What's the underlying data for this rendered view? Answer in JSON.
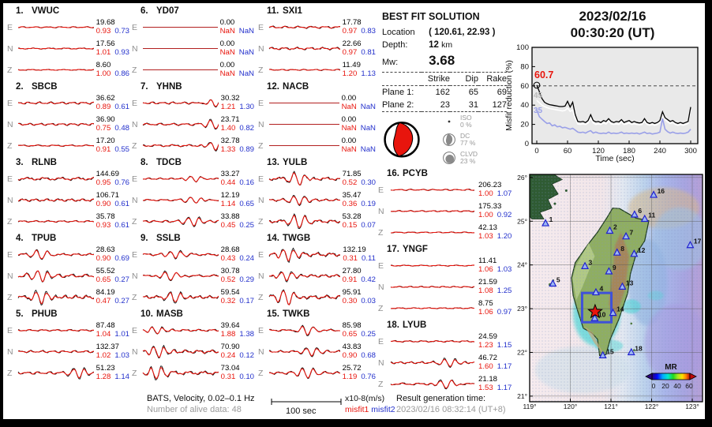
{
  "event_time": {
    "date": "2023/02/16",
    "time": "00:30:20  (UT)"
  },
  "solution": {
    "title": "BEST FIT SOLUTION",
    "location_label": "Location",
    "location_value": "( 120.61, 22.93 )",
    "depth_label": "Depth:",
    "depth_value": "12",
    "depth_unit": "km",
    "mw_label": "Mw:",
    "mw_value": "3.68",
    "table_headers": [
      "Strike",
      "Dip",
      "Rake"
    ],
    "plane1": {
      "label": "Plane 1:",
      "strike": "162",
      "dip": "65",
      "rake": "69"
    },
    "plane2": {
      "label": "Plane 2:",
      "strike": "23",
      "dip": "31",
      "rake": "127"
    },
    "iso": {
      "name": "ISO",
      "pct": "0 %"
    },
    "dc": {
      "name": "DC",
      "pct": "77 %"
    },
    "clvd": {
      "name": "CLVD",
      "pct": "23 %"
    }
  },
  "stations": [
    {
      "id": "1.",
      "name": "VWUC",
      "traces": [
        {
          "comp": "E",
          "amp": "19.68",
          "m1": "0.93",
          "m2": "0.73",
          "w": 1.0
        },
        {
          "comp": "N",
          "amp": "17.56",
          "m1": "1.01",
          "m2": "0.93",
          "w": 1.0
        },
        {
          "comp": "Z",
          "amp": "8.60",
          "m1": "1.00",
          "m2": "0.86",
          "w": 0.8
        }
      ]
    },
    {
      "id": "2.",
      "name": "SBCB",
      "traces": [
        {
          "comp": "E",
          "amp": "36.62",
          "m1": "0.89",
          "m2": "0.61",
          "w": 1.8
        },
        {
          "comp": "N",
          "amp": "36.90",
          "m1": "0.75",
          "m2": "0.48",
          "w": 1.8
        },
        {
          "comp": "Z",
          "amp": "17.20",
          "m1": "0.91",
          "m2": "0.55",
          "w": 1.2
        }
      ]
    },
    {
      "id": "3.",
      "name": "RLNB",
      "traces": [
        {
          "comp": "E",
          "amp": "144.69",
          "m1": "0.95",
          "m2": "0.76",
          "w": 2.4
        },
        {
          "comp": "N",
          "amp": "106.71",
          "m1": "0.90",
          "m2": "0.61",
          "w": 2.2
        },
        {
          "comp": "Z",
          "amp": "35.78",
          "m1": "0.93",
          "m2": "0.61",
          "w": 1.4
        }
      ]
    },
    {
      "id": "4.",
      "name": "TPUB",
      "traces": [
        {
          "comp": "E",
          "amp": "28.63",
          "m1": "0.90",
          "m2": "0.69",
          "w": 1.8,
          "p": 0.27
        },
        {
          "comp": "N",
          "amp": "55.52",
          "m1": "0.65",
          "m2": "0.27",
          "w": 2.8,
          "p": 0.28
        },
        {
          "comp": "Z",
          "amp": "84.19",
          "m1": "0.47",
          "m2": "0.27",
          "w": 3.2,
          "p": 0.27
        }
      ]
    },
    {
      "id": "5.",
      "name": "PHUB",
      "traces": [
        {
          "comp": "E",
          "amp": "87.48",
          "m1": "1.04",
          "m2": "1.01",
          "w": 1.4
        },
        {
          "comp": "N",
          "amp": "132.37",
          "m1": "1.02",
          "m2": "1.03",
          "w": 1.8
        },
        {
          "comp": "Z",
          "amp": "51.23",
          "m1": "1.28",
          "m2": "1.14",
          "w": 2.2,
          "p": 0.72
        }
      ]
    },
    {
      "id": "6.",
      "name": "YD07",
      "traces": [
        {
          "comp": "E",
          "amp": "0.00",
          "m1": "NaN",
          "m2": "NaN",
          "w": 0
        },
        {
          "comp": "N",
          "amp": "0.00",
          "m1": "NaN",
          "m2": "NaN",
          "w": 0
        },
        {
          "comp": "Z",
          "amp": "0.00",
          "m1": "NaN",
          "m2": "NaN",
          "w": 0
        }
      ]
    },
    {
      "id": "7.",
      "name": "YHNB",
      "traces": [
        {
          "comp": "E",
          "amp": "30.32",
          "m1": "1.21",
          "m2": "1.30",
          "w": 1.8,
          "p": 0.86
        },
        {
          "comp": "N",
          "amp": "23.71",
          "m1": "1.40",
          "m2": "0.82",
          "w": 1.8,
          "p": 0.86
        },
        {
          "comp": "Z",
          "amp": "32.78",
          "m1": "1.33",
          "m2": "0.89",
          "w": 1.8,
          "p": 0.86
        }
      ]
    },
    {
      "id": "8.",
      "name": "TDCB",
      "traces": [
        {
          "comp": "E",
          "amp": "33.27",
          "m1": "0.44",
          "m2": "0.16",
          "w": 1.4,
          "p": 0.62
        },
        {
          "comp": "N",
          "amp": "12.19",
          "m1": "1.14",
          "m2": "0.65",
          "w": 1.4,
          "p": 0.62
        },
        {
          "comp": "Z",
          "amp": "33.88",
          "m1": "0.45",
          "m2": "0.25",
          "w": 1.8,
          "p": 0.6
        }
      ]
    },
    {
      "id": "9.",
      "name": "SSLB",
      "traces": [
        {
          "comp": "E",
          "amp": "28.68",
          "m1": "0.43",
          "m2": "0.24",
          "w": 1.8,
          "p": 0.38
        },
        {
          "comp": "N",
          "amp": "30.78",
          "m1": "0.52",
          "m2": "0.29",
          "w": 1.8,
          "p": 0.32
        },
        {
          "comp": "Z",
          "amp": "59.54",
          "m1": "0.32",
          "m2": "0.17",
          "w": 2.6,
          "p": 0.38
        }
      ]
    },
    {
      "id": "10.",
      "name": "MASB",
      "traces": [
        {
          "comp": "E",
          "amp": "39.64",
          "m1": "1.88",
          "m2": "1.38",
          "w": 1.8,
          "p": 0.16
        },
        {
          "comp": "N",
          "amp": "70.90",
          "m1": "0.24",
          "m2": "0.12",
          "w": 3.0,
          "p": 0.18
        },
        {
          "comp": "Z",
          "amp": "73.04",
          "m1": "0.31",
          "m2": "0.10",
          "w": 3.0,
          "p": 0.15
        }
      ]
    },
    {
      "id": "11.",
      "name": "SXI1",
      "traces": [
        {
          "comp": "E",
          "amp": "17.78",
          "m1": "0.97",
          "m2": "0.83",
          "w": 1.8
        },
        {
          "comp": "N",
          "amp": "22.66",
          "m1": "0.97",
          "m2": "0.81",
          "w": 2.0
        },
        {
          "comp": "Z",
          "amp": "11.49",
          "m1": "1.20",
          "m2": "1.13",
          "w": 1.0
        }
      ]
    },
    {
      "id": "12.",
      "name": "NACB",
      "traces": [
        {
          "comp": "E",
          "amp": "0.00",
          "m1": "NaN",
          "m2": "NaN",
          "w": 0
        },
        {
          "comp": "N",
          "amp": "0.00",
          "m1": "NaN",
          "m2": "NaN",
          "w": 0
        },
        {
          "comp": "Z",
          "amp": "0.00",
          "m1": "NaN",
          "m2": "NaN",
          "w": 0
        }
      ]
    },
    {
      "id": "13.",
      "name": "YULB",
      "traces": [
        {
          "comp": "E",
          "amp": "71.85",
          "m1": "0.52",
          "m2": "0.30",
          "w": 2.6,
          "p": 0.35
        },
        {
          "comp": "N",
          "amp": "35.47",
          "m1": "0.36",
          "m2": "0.19",
          "w": 1.8,
          "p": 0.35
        },
        {
          "comp": "Z",
          "amp": "53.28",
          "m1": "0.15",
          "m2": "0.07",
          "w": 2.6,
          "p": 0.35
        }
      ]
    },
    {
      "id": "14.",
      "name": "TWGB",
      "traces": [
        {
          "comp": "E",
          "amp": "132.19",
          "m1": "0.31",
          "m2": "0.11",
          "w": 3.2,
          "p": 0.22
        },
        {
          "comp": "N",
          "amp": "27.80",
          "m1": "0.91",
          "m2": "0.42",
          "w": 2.4,
          "p": 0.2
        },
        {
          "comp": "Z",
          "amp": "95.91",
          "m1": "0.30",
          "m2": "0.03",
          "w": 3.2,
          "p": 0.22
        }
      ]
    },
    {
      "id": "15.",
      "name": "TWKB",
      "traces": [
        {
          "comp": "E",
          "amp": "85.98",
          "m1": "0.65",
          "m2": "0.25",
          "w": 1.8,
          "p": 0.45
        },
        {
          "comp": "N",
          "amp": "43.83",
          "m1": "0.90",
          "m2": "0.68",
          "w": 1.8,
          "p": 0.5
        },
        {
          "comp": "Z",
          "amp": "25.72",
          "m1": "1.19",
          "m2": "0.76",
          "w": 2.0,
          "p": 0.45
        }
      ]
    },
    {
      "id": "16.",
      "name": "PCYB",
      "traces": [
        {
          "comp": "E",
          "amp": "206.23",
          "m1": "1.00",
          "m2": "1.07",
          "w": 1.1
        },
        {
          "comp": "N",
          "amp": "175.33",
          "m1": "1.00",
          "m2": "0.92",
          "w": 1.1
        },
        {
          "comp": "Z",
          "amp": "42.13",
          "m1": "1.03",
          "m2": "1.20",
          "w": 0.9
        }
      ]
    },
    {
      "id": "17.",
      "name": "YNGF",
      "traces": [
        {
          "comp": "E",
          "amp": "11.41",
          "m1": "1.06",
          "m2": "1.03",
          "w": 0.9
        },
        {
          "comp": "N",
          "amp": "21.59",
          "m1": "1.08",
          "m2": "1.25",
          "w": 1.1
        },
        {
          "comp": "Z",
          "amp": "8.75",
          "m1": "1.06",
          "m2": "0.97",
          "w": 0.9
        }
      ]
    },
    {
      "id": "18.",
      "name": "LYUB",
      "traces": [
        {
          "comp": "E",
          "amp": "24.59",
          "m1": "1.23",
          "m2": "1.15",
          "w": 1.3
        },
        {
          "comp": "N",
          "amp": "46.72",
          "m1": "1.60",
          "m2": "1.17",
          "w": 1.8,
          "p": 0.7
        },
        {
          "comp": "Z",
          "amp": "21.18",
          "m1": "1.53",
          "m2": "1.17",
          "w": 1.8,
          "p": 0.65
        }
      ]
    }
  ],
  "footer": {
    "bats_line": "BATS, Velocity, 0.02–0.1 Hz",
    "alive_line": "Number of alive data: 48",
    "scale_label": "100 sec",
    "units_label": "x10-8(m/s)",
    "misfit1_label": "misfit1",
    "misfit2_label": "misfit2",
    "result_label": "Result generation time:",
    "result_time": "2023/02/16 08:32:14 (UT+8)"
  },
  "colors": {
    "misfit1": "#e8150d",
    "misfit2": "#2330cc",
    "reference_line": "#9aa0e8",
    "star": "#e8150d",
    "station_triangle": "#2020d0"
  },
  "chart_data": [
    {
      "type": "line",
      "title": "2023/02/16 00:30:20 (UT)",
      "xlabel": "Time (sec)",
      "ylabel": "Misfit reduction (%)",
      "xlim": [
        -10,
        313
      ],
      "ylim": [
        0,
        100
      ],
      "xticks": [
        0,
        60,
        120,
        180,
        240,
        300
      ],
      "yticks": [
        0,
        20,
        40,
        60,
        80,
        100
      ],
      "dashed_line_y": 60,
      "best_value": 60.7,
      "best_label": "60.7",
      "start_labels": [
        {
          "text": "45",
          "color": "#b8b8b8"
        },
        {
          "text": "35",
          "color": "#9aa0e8"
        }
      ],
      "x_step": 5,
      "series": [
        {
          "name": "misfit-white",
          "color": "#ffffff",
          "y": [
            45,
            42.5,
            40,
            38.5,
            37.5,
            36.5,
            36,
            35.5,
            35,
            34.5,
            34,
            34.5,
            37,
            33.5,
            35,
            26,
            20.5,
            20,
            20.5,
            20,
            21.5,
            27,
            21.5,
            20,
            20.5,
            20,
            21.5,
            20.5,
            23.5,
            20.5,
            20,
            20.5,
            20,
            22.5,
            20,
            20.5,
            21.5,
            20,
            20.5,
            20,
            19.5,
            20,
            23.5,
            20,
            19,
            20,
            19,
            20,
            22,
            31,
            25,
            22.5,
            21,
            22,
            20,
            19,
            20,
            19,
            20,
            21,
            35
          ]
        },
        {
          "name": "misfit-reference",
          "color": "#9aa0e8",
          "y": [
            35,
            28,
            25.5,
            23,
            21,
            21.5,
            18.5,
            19.5,
            17.5,
            18,
            16.5,
            17,
            16,
            15,
            16,
            14,
            12,
            11.5,
            12,
            11,
            12.5,
            13.5,
            11,
            12,
            11,
            10.5,
            11,
            10.5,
            12,
            10.5,
            11,
            10.5,
            11,
            12,
            10.5,
            11,
            10.5,
            11,
            10.5,
            11,
            10,
            11,
            12,
            10.5,
            11,
            10,
            10.5,
            11,
            12,
            26,
            15,
            12.5,
            11,
            12,
            11,
            10.5,
            11,
            10.5,
            11,
            12,
            15
          ]
        },
        {
          "name": "misfit-current",
          "color": "#000000",
          "y": [
            60.7,
            54,
            47,
            43,
            41.5,
            40.5,
            40,
            39.5,
            39,
            38.5,
            38.5,
            39,
            44,
            38,
            43,
            30,
            23,
            22.5,
            23,
            22,
            24,
            30,
            24,
            22.5,
            23,
            22,
            24,
            23,
            26,
            23,
            22,
            23,
            22.5,
            25,
            22,
            23,
            24,
            22,
            23,
            22,
            21.5,
            22,
            26,
            22,
            21,
            22,
            21,
            22,
            24,
            33,
            27,
            25,
            23,
            24,
            22,
            21,
            22,
            21,
            22,
            23,
            38
          ]
        }
      ]
    },
    {
      "type": "map",
      "region": {
        "lon": [
          119.0,
          123.25
        ],
        "lat": [
          20.88,
          26.07
        ]
      },
      "xticks": [
        "119°",
        "120°",
        "121°",
        "122°",
        "123°"
      ],
      "yticks": [
        "21°",
        "22°",
        "23°",
        "24°",
        "25°",
        "26°"
      ],
      "epicenter": {
        "lon": 120.61,
        "lat": 22.93
      },
      "search_box": {
        "lon": [
          120.29,
          121.01
        ],
        "lat": [
          22.69,
          23.36
        ]
      },
      "colorbar": {
        "label": "MR",
        "ticks": [
          "0",
          "20",
          "40",
          "60"
        ]
      },
      "stations": [
        {
          "n": "1",
          "lon": 119.39,
          "lat": 24.95
        },
        {
          "n": "2",
          "lon": 120.97,
          "lat": 24.78
        },
        {
          "n": "3",
          "lon": 120.36,
          "lat": 23.97
        },
        {
          "n": "4",
          "lon": 120.63,
          "lat": 23.37
        },
        {
          "n": "5",
          "lon": 119.57,
          "lat": 23.57
        },
        {
          "n": "6",
          "lon": 121.58,
          "lat": 25.15
        },
        {
          "n": "7",
          "lon": 121.37,
          "lat": 24.65
        },
        {
          "n": "8",
          "lon": 121.15,
          "lat": 24.28
        },
        {
          "n": "9",
          "lon": 120.95,
          "lat": 23.85
        },
        {
          "n": "10",
          "lon": 120.6,
          "lat": 22.78
        },
        {
          "n": "11",
          "lon": 121.83,
          "lat": 25.05
        },
        {
          "n": "12",
          "lon": 121.57,
          "lat": 24.25
        },
        {
          "n": "13",
          "lon": 121.28,
          "lat": 23.5
        },
        {
          "n": "14",
          "lon": 121.05,
          "lat": 22.9
        },
        {
          "n": "15",
          "lon": 120.8,
          "lat": 21.93
        },
        {
          "n": "16",
          "lon": 122.05,
          "lat": 25.6
        },
        {
          "n": "17",
          "lon": 122.95,
          "lat": 24.45
        },
        {
          "n": "18",
          "lon": 121.5,
          "lat": 22.0
        }
      ]
    }
  ]
}
